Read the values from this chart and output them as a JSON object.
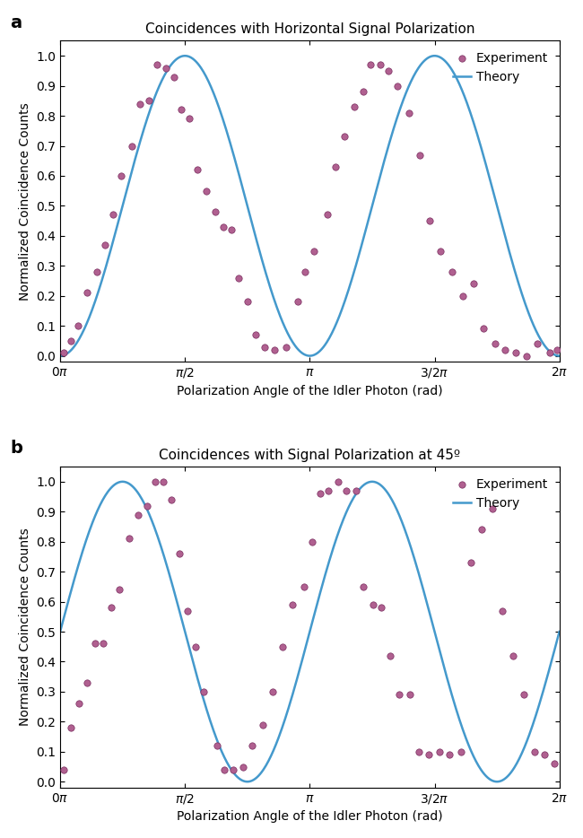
{
  "title_a": "Coincidences with Horizontal Signal Polarization",
  "title_b": "Coincidences with Signal Polarization at 45º",
  "xlabel": "Polarization Angle of the Idler Photon (rad)",
  "ylabel": "Normalized Coincidence Counts",
  "label_a": "a",
  "label_b": "b",
  "legend_experiment": "Experiment",
  "legend_theory": "Theory",
  "dot_color": "#b06090",
  "dot_edgecolor": "#7a3060",
  "line_color": "#4499cc",
  "dot_size": 28,
  "line_width": 1.8,
  "ylim": [
    -0.02,
    1.05
  ],
  "xlim": [
    0,
    6.283185307
  ],
  "exp_x_a": [
    0.04,
    0.13,
    0.22,
    0.34,
    0.46,
    0.56,
    0.66,
    0.77,
    0.9,
    1.0,
    1.12,
    1.22,
    1.33,
    1.43,
    1.52,
    1.62,
    1.73,
    1.84,
    1.95,
    2.05,
    2.15,
    2.25,
    2.36,
    2.46,
    2.57,
    2.7,
    2.84,
    2.99,
    3.08,
    3.19,
    3.36,
    3.47,
    3.58,
    3.7,
    3.81,
    3.91,
    4.03,
    4.13,
    4.24,
    4.39,
    4.53,
    4.65,
    4.79,
    4.93,
    5.07,
    5.2,
    5.33,
    5.47,
    5.6,
    5.73,
    5.87,
    6.0,
    6.16,
    6.25
  ],
  "exp_y_a": [
    0.01,
    0.05,
    0.1,
    0.21,
    0.28,
    0.37,
    0.47,
    0.6,
    0.7,
    0.84,
    0.85,
    0.97,
    0.96,
    0.93,
    0.82,
    0.79,
    0.62,
    0.55,
    0.48,
    0.43,
    0.42,
    0.26,
    0.18,
    0.07,
    0.03,
    0.02,
    0.03,
    0.18,
    0.28,
    0.35,
    0.47,
    0.63,
    0.73,
    0.83,
    0.88,
    0.97,
    0.97,
    0.95,
    0.9,
    0.81,
    0.67,
    0.45,
    0.35,
    0.28,
    0.2,
    0.24,
    0.09,
    0.04,
    0.02,
    0.01,
    0.0,
    0.04,
    0.01,
    0.02
  ],
  "exp_x_b": [
    0.05,
    0.14,
    0.24,
    0.34,
    0.44,
    0.54,
    0.64,
    0.75,
    0.87,
    0.98,
    1.09,
    1.2,
    1.3,
    1.4,
    1.5,
    1.6,
    1.7,
    1.81,
    1.97,
    2.07,
    2.18,
    2.3,
    2.42,
    2.55,
    2.67,
    2.8,
    2.92,
    3.07,
    3.17,
    3.27,
    3.38,
    3.5,
    3.6,
    3.72,
    3.82,
    3.94,
    4.04,
    4.15,
    4.27,
    4.4,
    4.52,
    4.64,
    4.77,
    4.9,
    5.04,
    5.17,
    5.3,
    5.44,
    5.57,
    5.7,
    5.84,
    5.97,
    6.1,
    6.22
  ],
  "exp_y_b": [
    0.04,
    0.18,
    0.26,
    0.33,
    0.46,
    0.46,
    0.58,
    0.64,
    0.81,
    0.89,
    0.92,
    1.0,
    1.0,
    0.94,
    0.76,
    0.57,
    0.45,
    0.3,
    0.12,
    0.04,
    0.04,
    0.05,
    0.12,
    0.19,
    0.3,
    0.45,
    0.59,
    0.65,
    0.8,
    0.96,
    0.97,
    1.0,
    0.97,
    0.97,
    0.65,
    0.59,
    0.58,
    0.42,
    0.29,
    0.29,
    0.1,
    0.09,
    0.1,
    0.09,
    0.1,
    0.73,
    0.84,
    0.91,
    0.57,
    0.42,
    0.29,
    0.1,
    0.09,
    0.06
  ],
  "phase_a": 1.5707963268,
  "phase_b": 0.7853981634,
  "fig_width": 6.5,
  "fig_height": 9.34,
  "dpi": 100
}
